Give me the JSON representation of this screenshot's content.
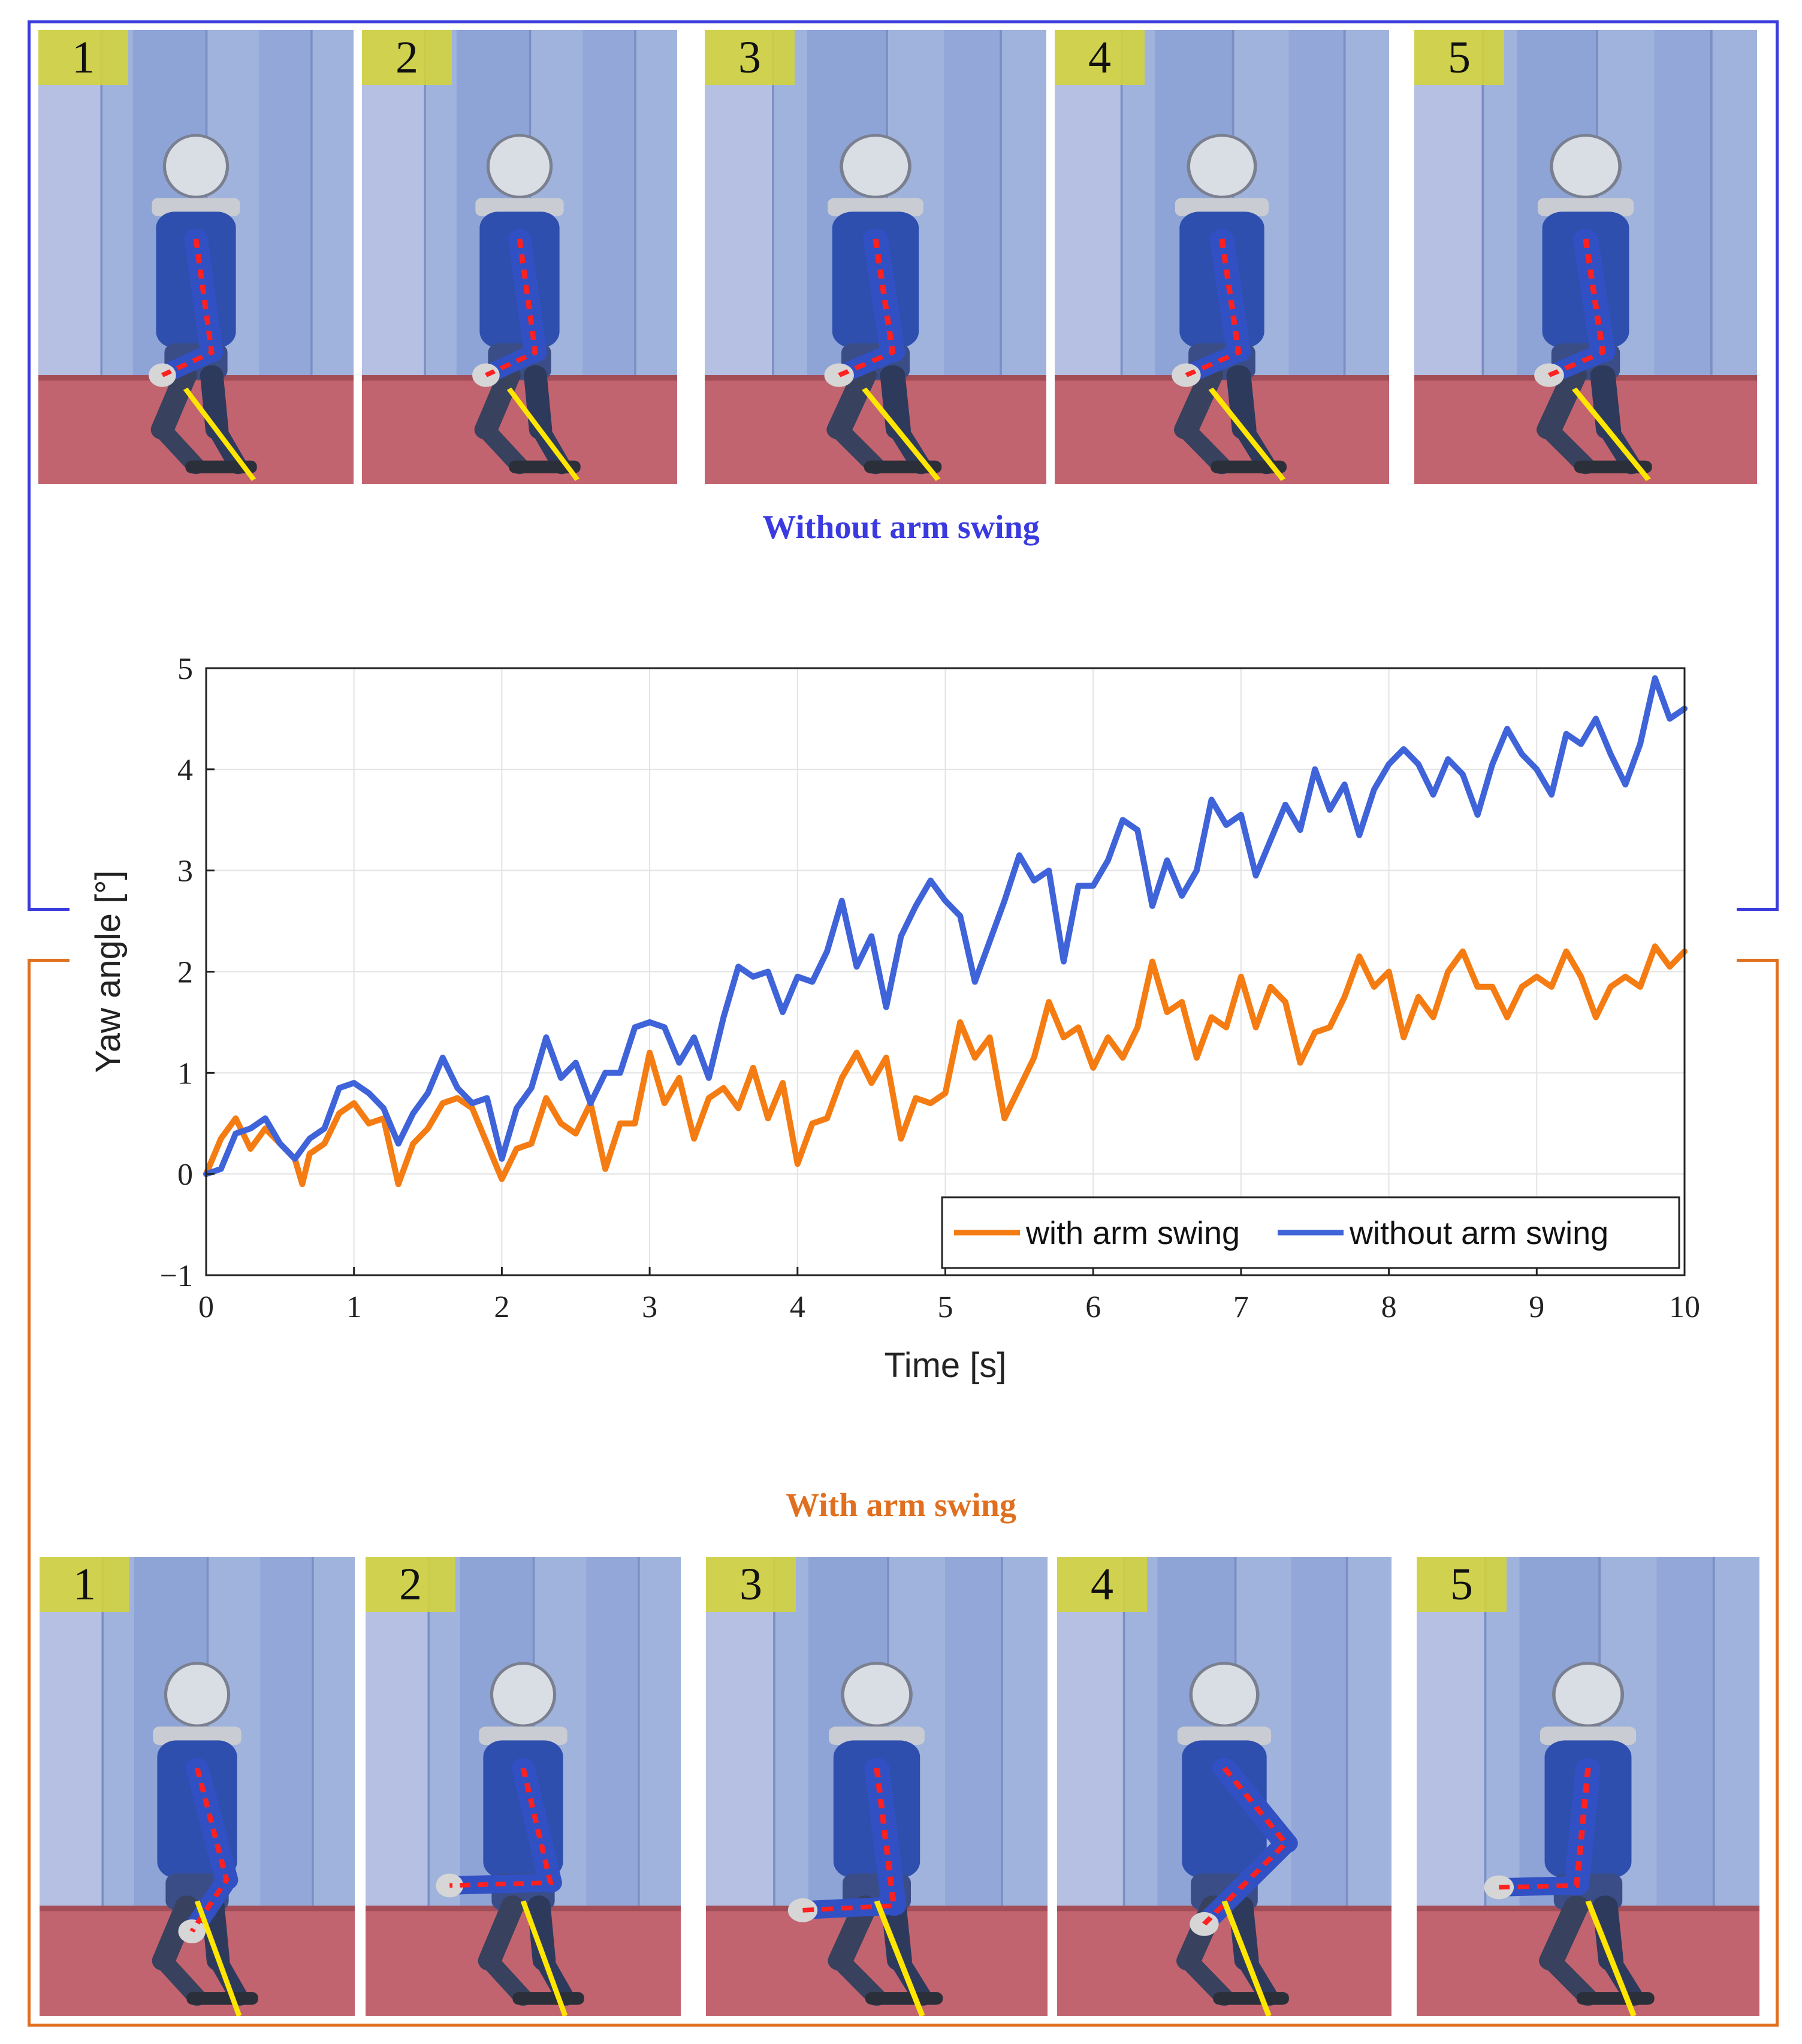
{
  "captions": {
    "top": "Without arm swing",
    "bottom": "With arm swing"
  },
  "frames": {
    "top": [
      "1",
      "2",
      "3",
      "4",
      "5"
    ],
    "bottom": [
      "1",
      "2",
      "3",
      "4",
      "5"
    ]
  },
  "colors": {
    "without": "#3f63d8",
    "with": "#f47c12",
    "top_bracket": "#3b3bdc",
    "bottom_bracket": "#e0701f"
  },
  "chart_data": {
    "type": "line",
    "xlabel": "Time [s]",
    "ylabel": "Yaw angle [°]",
    "xlim": [
      0,
      10
    ],
    "ylim": [
      -1,
      5
    ],
    "xticks": [
      "0",
      "1",
      "2",
      "3",
      "4",
      "5",
      "6",
      "7",
      "8",
      "9",
      "10"
    ],
    "yticks": [
      "−1",
      "0",
      "1",
      "2",
      "3",
      "4",
      "5"
    ],
    "grid": true,
    "legend_position": "bottom-right",
    "series": [
      {
        "name": "with arm swing",
        "x": [
          0,
          0.1,
          0.2,
          0.3,
          0.4,
          0.5,
          0.6,
          0.65,
          0.7,
          0.8,
          0.9,
          1.0,
          1.1,
          1.2,
          1.3,
          1.4,
          1.5,
          1.6,
          1.7,
          1.8,
          1.9,
          2.0,
          2.1,
          2.2,
          2.3,
          2.4,
          2.5,
          2.6,
          2.7,
          2.8,
          2.9,
          3.0,
          3.1,
          3.2,
          3.3,
          3.4,
          3.5,
          3.6,
          3.7,
          3.8,
          3.9,
          4.0,
          4.1,
          4.2,
          4.3,
          4.4,
          4.5,
          4.6,
          4.7,
          4.8,
          4.9,
          5.0,
          5.1,
          5.2,
          5.3,
          5.4,
          5.5,
          5.6,
          5.7,
          5.8,
          5.9,
          6.0,
          6.1,
          6.2,
          6.3,
          6.4,
          6.5,
          6.6,
          6.7,
          6.8,
          6.9,
          7.0,
          7.1,
          7.2,
          7.3,
          7.4,
          7.5,
          7.6,
          7.7,
          7.8,
          7.9,
          8.0,
          8.1,
          8.2,
          8.3,
          8.4,
          8.5,
          8.6,
          8.7,
          8.8,
          8.9,
          9.0,
          9.1,
          9.2,
          9.3,
          9.4,
          9.5,
          9.6,
          9.7,
          9.8,
          9.9,
          10.0
        ],
        "values": [
          0.0,
          0.35,
          0.55,
          0.25,
          0.45,
          0.3,
          0.15,
          -0.1,
          0.2,
          0.3,
          0.6,
          0.7,
          0.5,
          0.55,
          -0.1,
          0.3,
          0.45,
          0.7,
          0.75,
          0.65,
          0.3,
          -0.05,
          0.25,
          0.3,
          0.75,
          0.5,
          0.4,
          0.7,
          0.05,
          0.5,
          0.5,
          1.2,
          0.7,
          0.95,
          0.35,
          0.75,
          0.85,
          0.65,
          1.05,
          0.55,
          0.9,
          0.1,
          0.5,
          0.55,
          0.95,
          1.2,
          0.9,
          1.15,
          0.35,
          0.75,
          0.7,
          0.8,
          1.5,
          1.15,
          1.35,
          0.55,
          0.85,
          1.15,
          1.7,
          1.35,
          1.45,
          1.05,
          1.35,
          1.15,
          1.45,
          2.1,
          1.6,
          1.7,
          1.15,
          1.55,
          1.45,
          1.95,
          1.45,
          1.85,
          1.7,
          1.1,
          1.4,
          1.45,
          1.75,
          2.15,
          1.85,
          2.0,
          1.35,
          1.75,
          1.55,
          2.0,
          2.2,
          1.85,
          1.85,
          1.55,
          1.85,
          1.95,
          1.85,
          2.2,
          1.95,
          1.55,
          1.85,
          1.95,
          1.85,
          2.25,
          2.05,
          2.2
        ]
      },
      {
        "name": "without arm swing",
        "x": [
          0,
          0.1,
          0.2,
          0.3,
          0.4,
          0.5,
          0.6,
          0.7,
          0.8,
          0.9,
          1.0,
          1.1,
          1.2,
          1.3,
          1.4,
          1.5,
          1.6,
          1.7,
          1.8,
          1.9,
          2.0,
          2.1,
          2.2,
          2.3,
          2.4,
          2.5,
          2.6,
          2.7,
          2.8,
          2.9,
          3.0,
          3.1,
          3.2,
          3.3,
          3.4,
          3.5,
          3.6,
          3.7,
          3.8,
          3.9,
          4.0,
          4.1,
          4.2,
          4.3,
          4.4,
          4.5,
          4.6,
          4.7,
          4.8,
          4.9,
          5.0,
          5.1,
          5.2,
          5.3,
          5.4,
          5.5,
          5.6,
          5.7,
          5.8,
          5.9,
          6.0,
          6.1,
          6.2,
          6.3,
          6.4,
          6.5,
          6.6,
          6.7,
          6.8,
          6.9,
          7.0,
          7.1,
          7.2,
          7.3,
          7.4,
          7.5,
          7.6,
          7.7,
          7.8,
          7.9,
          8.0,
          8.1,
          8.2,
          8.3,
          8.4,
          8.5,
          8.6,
          8.7,
          8.8,
          8.9,
          9.0,
          9.1,
          9.2,
          9.3,
          9.4,
          9.5,
          9.6,
          9.7,
          9.8,
          9.9,
          10.0
        ],
        "values": [
          0.0,
          0.05,
          0.4,
          0.45,
          0.55,
          0.3,
          0.15,
          0.35,
          0.45,
          0.85,
          0.9,
          0.8,
          0.65,
          0.3,
          0.6,
          0.8,
          1.15,
          0.85,
          0.7,
          0.75,
          0.15,
          0.65,
          0.85,
          1.35,
          0.95,
          1.1,
          0.7,
          1.0,
          1.0,
          1.45,
          1.5,
          1.45,
          1.1,
          1.35,
          0.95,
          1.55,
          2.05,
          1.95,
          2.0,
          1.6,
          1.95,
          1.9,
          2.2,
          2.7,
          2.05,
          2.35,
          1.65,
          2.35,
          2.65,
          2.9,
          2.7,
          2.55,
          1.9,
          2.3,
          2.7,
          3.15,
          2.9,
          3.0,
          2.1,
          2.85,
          2.85,
          3.1,
          3.5,
          3.4,
          2.65,
          3.1,
          2.75,
          3.0,
          3.7,
          3.45,
          3.55,
          2.95,
          3.3,
          3.65,
          3.4,
          4.0,
          3.6,
          3.85,
          3.35,
          3.8,
          4.05,
          4.2,
          4.05,
          3.75,
          4.1,
          3.95,
          3.55,
          4.05,
          4.4,
          4.15,
          4.0,
          3.75,
          4.35,
          4.25,
          4.5,
          4.15,
          3.85,
          4.25,
          4.9,
          4.5,
          4.6
        ]
      }
    ]
  }
}
